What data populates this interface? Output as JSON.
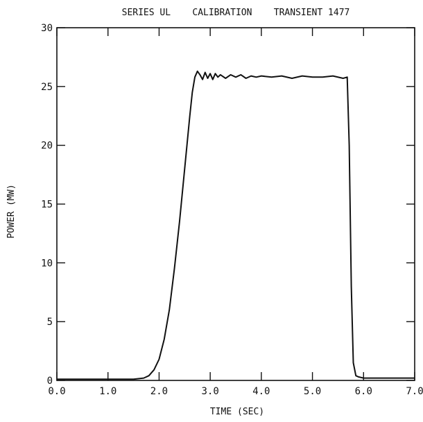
{
  "chart_data": {
    "type": "line",
    "title": "SERIES UL    CALIBRATION    TRANSIENT 1477",
    "xlabel": "TIME (SEC)",
    "ylabel": "POWER (MW)",
    "xlim": [
      0.0,
      7.0
    ],
    "ylim": [
      0,
      30
    ],
    "x_ticks": [
      "0.0",
      "1.0",
      "2.0",
      "3.0",
      "4.0",
      "5.0",
      "6.0",
      "7.0"
    ],
    "y_ticks": [
      "0",
      "5",
      "10",
      "15",
      "20",
      "25",
      "30"
    ],
    "grid": false,
    "legend": "none",
    "series": [
      {
        "x": [
          0.0,
          0.5,
          1.0,
          1.5,
          1.7,
          1.8,
          1.9,
          2.0,
          2.1,
          2.2,
          2.3,
          2.4,
          2.5,
          2.6,
          2.65,
          2.7,
          2.75,
          2.8,
          2.85,
          2.9,
          2.95,
          3.0,
          3.05,
          3.1,
          3.15,
          3.2,
          3.3,
          3.4,
          3.5,
          3.6,
          3.7,
          3.8,
          3.9,
          4.0,
          4.2,
          4.4,
          4.6,
          4.8,
          5.0,
          5.2,
          5.4,
          5.6,
          5.68,
          5.72,
          5.76,
          5.8,
          5.85,
          5.9,
          6.0,
          6.2,
          6.5,
          7.0
        ],
        "y": [
          0.1,
          0.1,
          0.1,
          0.1,
          0.2,
          0.4,
          0.9,
          1.8,
          3.5,
          6.0,
          9.5,
          13.5,
          18.0,
          22.5,
          24.5,
          25.8,
          26.3,
          26.0,
          25.6,
          26.2,
          25.7,
          26.1,
          25.6,
          26.1,
          25.8,
          26.0,
          25.7,
          26.0,
          25.8,
          26.0,
          25.7,
          25.9,
          25.8,
          25.9,
          25.8,
          25.9,
          25.7,
          25.9,
          25.8,
          25.8,
          25.9,
          25.7,
          25.8,
          20.0,
          8.0,
          1.5,
          0.4,
          0.3,
          0.2,
          0.2,
          0.2,
          0.2
        ]
      }
    ]
  }
}
